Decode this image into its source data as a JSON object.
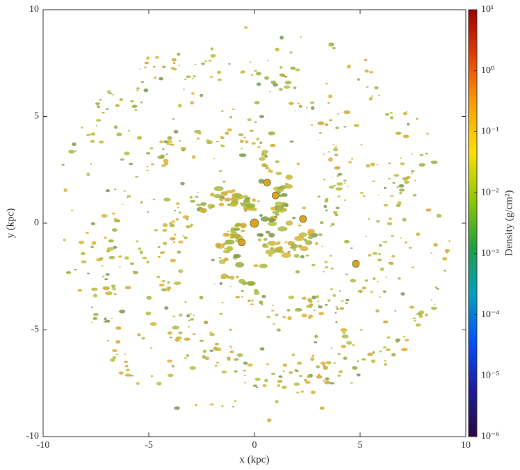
{
  "chart_data": {
    "type": "image",
    "xlabel": "x (kpc)",
    "ylabel": "y (kpc)",
    "xlim": [
      -10,
      10
    ],
    "ylim": [
      -10,
      10
    ],
    "xticks": [
      -10,
      -5,
      0,
      5,
      10
    ],
    "yticks": [
      -10,
      -5,
      0,
      5,
      10
    ],
    "colorbar": {
      "label": "Density (g/cm²)",
      "log": true,
      "lim": [
        1e-06,
        10
      ],
      "ticks": [
        {
          "value": 1e-06,
          "label": "10⁻⁶"
        },
        {
          "value": 1e-05,
          "label": "10⁻⁵"
        },
        {
          "value": 0.0001,
          "label": "10⁻⁴"
        },
        {
          "value": 0.001,
          "label": "10⁻³"
        },
        {
          "value": 0.01,
          "label": "10⁻²"
        },
        {
          "value": 0.1,
          "label": "10⁻¹"
        },
        {
          "value": 1,
          "label": "10⁰"
        },
        {
          "value": 10,
          "label": "10¹"
        }
      ],
      "colors": [
        "#2a0845",
        "#1c1c9c",
        "#0050ff",
        "#00a0c0",
        "#20a040",
        "#90c800",
        "#ffe000",
        "#ffa000",
        "#e84000",
        "#a00000"
      ]
    }
  }
}
